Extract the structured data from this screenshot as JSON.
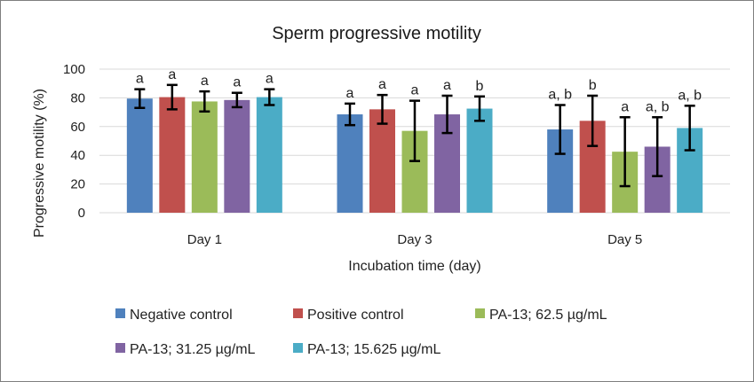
{
  "chart_data": {
    "type": "bar",
    "title": "Sperm progressive motility",
    "xlabel": "Incubation time (day)",
    "ylabel": "Progressive motility  (%)",
    "ylim": [
      0,
      100
    ],
    "yticks": [
      0,
      20,
      40,
      60,
      80,
      100
    ],
    "grid": true,
    "legend_position": "bottom",
    "categories": [
      "Day 1",
      "Day 3",
      "Day 5"
    ],
    "series": [
      {
        "name": "Negative control",
        "color": "#4f81bd",
        "values": [
          79.5,
          68.5,
          58
        ],
        "errors": [
          6.5,
          7.5,
          17
        ],
        "labels": [
          "a",
          "a",
          "a, b"
        ]
      },
      {
        "name": "Positive control",
        "color": "#c0504d",
        "values": [
          80.5,
          72,
          64
        ],
        "errors": [
          8.5,
          10,
          17.5
        ],
        "labels": [
          "a",
          "a",
          "b"
        ]
      },
      {
        "name": "PA-13; 62.5 µg/mL",
        "color": "#9bbb59",
        "values": [
          77.5,
          57,
          42.5
        ],
        "errors": [
          7,
          21,
          24
        ],
        "labels": [
          "a",
          "a",
          "a"
        ]
      },
      {
        "name": "PA-13; 31.25 µg/mL",
        "color": "#8064a2",
        "values": [
          78.5,
          68.5,
          46
        ],
        "errors": [
          5,
          13,
          20.5
        ],
        "labels": [
          "a",
          "a",
          "a, b"
        ]
      },
      {
        "name": "PA-13; 15.625 µg/mL",
        "color": "#4bacc6",
        "values": [
          80.5,
          72.5,
          59
        ],
        "errors": [
          5.5,
          8.5,
          15.5
        ],
        "labels": [
          "a",
          "b",
          "a, b"
        ]
      }
    ]
  }
}
